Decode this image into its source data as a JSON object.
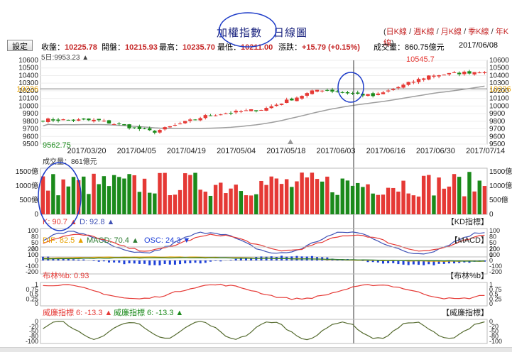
{
  "title": "加權指數　日線圖",
  "period_links": [
    "日K線",
    "週K線",
    "月K線",
    "季K線",
    "年K線"
  ],
  "settings_label": "設定",
  "info": {
    "close_label": "收盤：",
    "close": "10225.78",
    "open_label": "開盤：",
    "open": "10215.93",
    "high_label": "最高：",
    "high": "10235.70",
    "low_label": "最低：",
    "low": "10211.00",
    "chg_label": "漲跌：",
    "chg": "+15.79 (+0.15%)",
    "vol_label": "成交量：",
    "vol": "860.75億元",
    "date": "2017/06/08"
  },
  "ma_label": "5日:9953.23",
  "price_axis": {
    "ticks": [
      "10600",
      "10500",
      "10400",
      "10300",
      "10200",
      "10100",
      "10000",
      "9900",
      "9800",
      "9700",
      "9600",
      "9500"
    ],
    "current": "10226",
    "high_mark": "10545.7",
    "low_mark": "9562.75"
  },
  "date_ticks": [
    "2017/03/20",
    "2017/04/05",
    "2017/04/19",
    "2017/05/04",
    "2017/05/18",
    "2017/06/03",
    "2017/06/16",
    "2017/06/30",
    "2017/07/14"
  ],
  "volume": {
    "label": "成交量：861億元",
    "ticks": [
      "1500億",
      "1000億",
      "500億",
      "0"
    ]
  },
  "kd": {
    "k_label": "K: 90.7",
    "d_label": "D: 92.8",
    "tag": "【KD指標】",
    "ticks": [
      "100",
      "80",
      "50",
      "20",
      "0"
    ]
  },
  "macd": {
    "dif_label": "DIF: 82.5",
    "macd_label": "MACD: 70.4",
    "osc_label": "OSC: 24.3",
    "tag": "【MACD】",
    "ticks": [
      "200",
      "100",
      "0",
      "-100",
      "-200"
    ]
  },
  "boll": {
    "label": "布林%b: 0.93",
    "tag": "【布林%b】",
    "ticks": [
      "1",
      "0.75",
      "0.5",
      "0.25",
      "0"
    ]
  },
  "wr": {
    "label1": "威廉指標 6: -13.3",
    "label2": "威廉指標 6: -13.3",
    "tag": "【威廉指標】",
    "ticks": [
      "0",
      "-20",
      "-50",
      "-80",
      "-100"
    ]
  },
  "colors": {
    "up": "#e53935",
    "down": "#1b8a1b",
    "ma": "#9e9e9e",
    "kd_k": "#e53935",
    "kd_d": "#3f51b5",
    "dif": "#e6a100",
    "macd": "#2e7d32",
    "osc": "#1e40d8",
    "annotation": "#1e3cc8"
  },
  "chart_data": {
    "type": "line",
    "title": "加權指數　日線圖",
    "x": [
      "2017/03/20",
      "2017/04/05",
      "2017/04/19",
      "2017/05/04",
      "2017/05/18",
      "2017/06/03",
      "2017/06/16",
      "2017/06/30",
      "2017/07/14"
    ],
    "series": [
      {
        "name": "收盤",
        "values": [
          9820,
          9810,
          9660,
          9880,
          9960,
          10220,
          10130,
          10400,
          10460
        ]
      }
    ],
    "ylabel": "",
    "ylim": [
      9500,
      10600
    ],
    "grid": true
  }
}
